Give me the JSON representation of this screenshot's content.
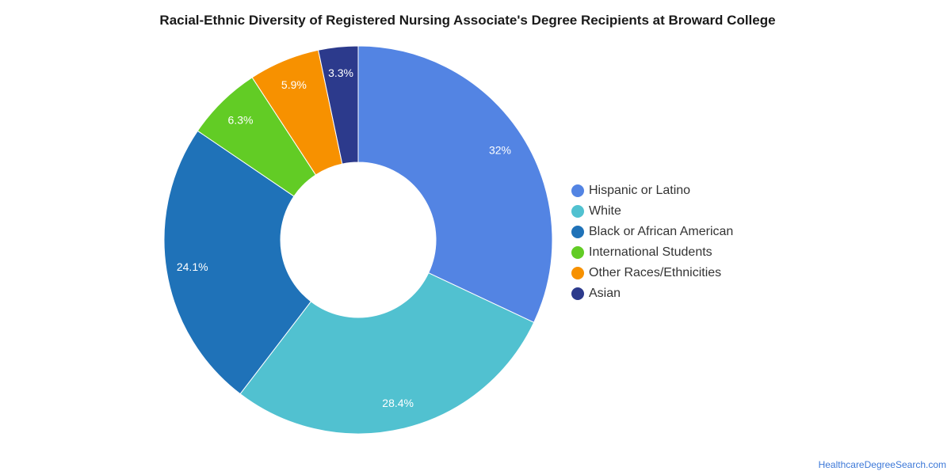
{
  "chart_data": {
    "type": "pie",
    "title": "Racial-Ethnic Diversity of Registered Nursing Associate's Degree Recipients at Broward College",
    "donut": true,
    "legend_position": "right",
    "slices": [
      {
        "label": "Hispanic or Latino",
        "value": 32,
        "display": "32%",
        "color": "#5384e3"
      },
      {
        "label": "White",
        "value": 28.4,
        "display": "28.4%",
        "color": "#51c1d0"
      },
      {
        "label": "Black or African American",
        "value": 24.1,
        "display": "24.1%",
        "color": "#1f72b8"
      },
      {
        "label": "International Students",
        "value": 6.3,
        "display": "6.3%",
        "color": "#62cc25"
      },
      {
        "label": "Other Races/Ethnicities",
        "value": 5.9,
        "display": "5.9%",
        "color": "#f79100"
      },
      {
        "label": "Asian",
        "value": 3.3,
        "display": "3.3%",
        "color": "#2c3a8c"
      }
    ]
  },
  "source": "HealthcareDegreeSearch.com"
}
